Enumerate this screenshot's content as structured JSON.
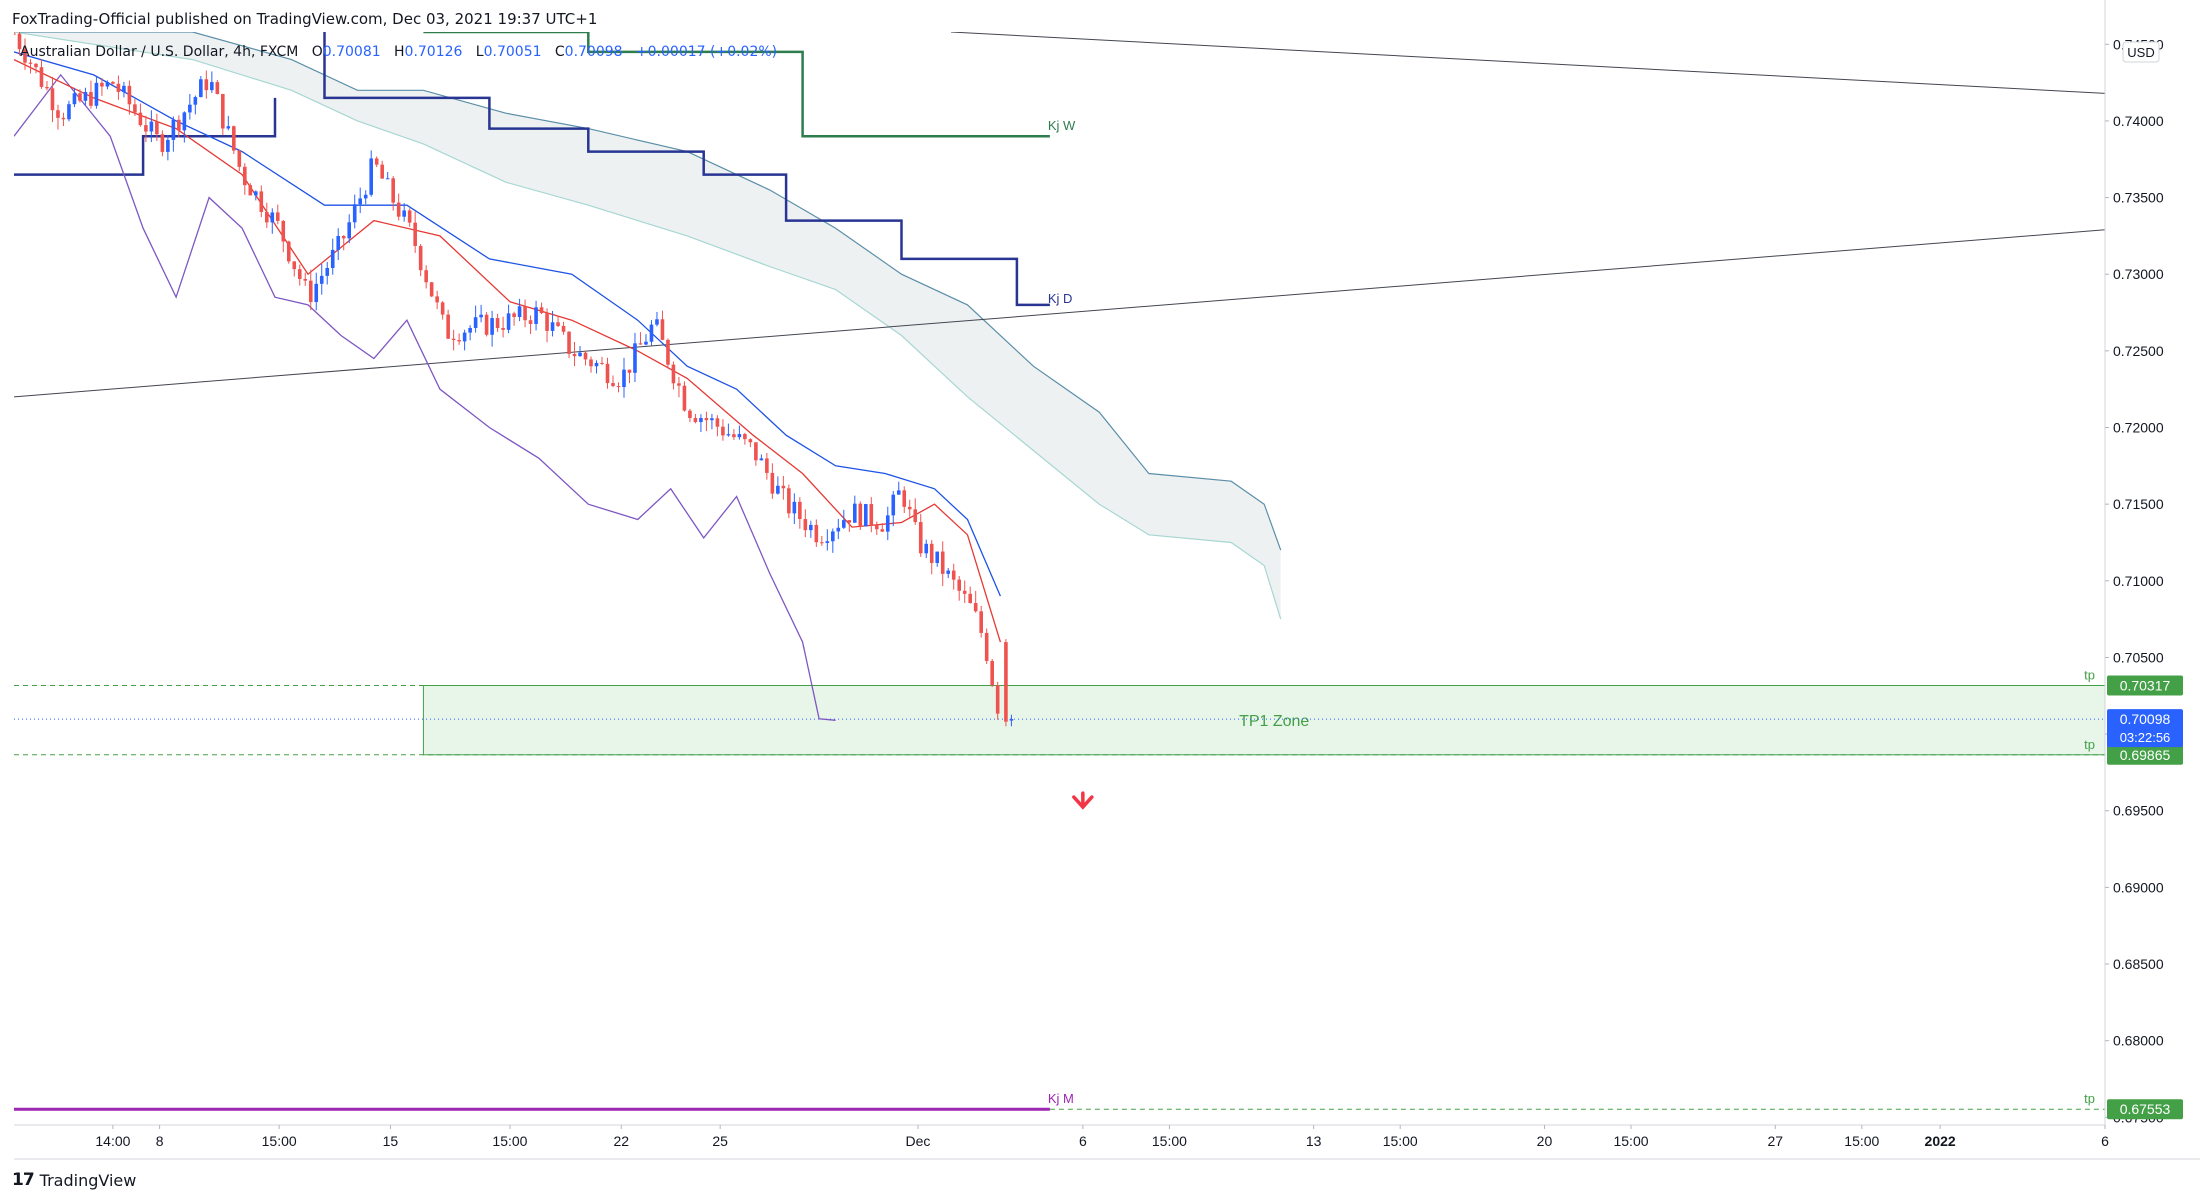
{
  "header": {
    "published": "FoxTrading-Official published on TradingView.com, Dec 03, 2021 19:37 UTC+1"
  },
  "legend": {
    "symbol": "Australian Dollar / U.S. Dollar, 4h, FXCM",
    "o_label": "O",
    "o_value": "0.70081",
    "h_label": "H",
    "h_value": "0.70126",
    "l_label": "L",
    "l_value": "0.70051",
    "c_label": "C",
    "c_value": "0.70098",
    "change": "+0.00017 (+0.02%)"
  },
  "footer": {
    "brand": "TradingView",
    "logo": "17"
  },
  "colors": {
    "up": "#2962ff",
    "down": "#ef5350",
    "tenkan": "#e53935",
    "kijun": "#1e53e5",
    "lagging": "#7e57c2",
    "kj_d": "#283593",
    "kj_w": "#2e7d4f",
    "kj_m": "#9c27b0",
    "cloud_top": "#5b8fa8",
    "cloud_bottom": "#a7d7d2",
    "cloud_fill": "#eceff1",
    "tp": "#43a047",
    "zone_fill": "#e8f5e9",
    "price_tag": "#2962ff",
    "arrow": "#f23645"
  },
  "chart_data": {
    "type": "candlestick",
    "symbol": "AUDUSD",
    "interval": "4h",
    "currency": "USD",
    "y_axis": {
      "ylim": [
        0.6745,
        0.7458
      ],
      "ticks": [
        "0.74500",
        "0.74000",
        "0.73500",
        "0.73000",
        "0.72500",
        "0.72000",
        "0.71500",
        "0.71000",
        "0.70500",
        "0.70000",
        "0.69500",
        "0.69000",
        "0.68500",
        "0.68000",
        "0.67500"
      ]
    },
    "x_axis": {
      "range": [
        "2021-11-03T14:00",
        "2022-01-06T00:00"
      ],
      "ticks": [
        {
          "t": "2021-11-06T14:00",
          "label": "14:00"
        },
        {
          "t": "2021-11-08T00:00",
          "label": "8"
        },
        {
          "t": "2021-11-11T15:00",
          "label": "15:00"
        },
        {
          "t": "2021-11-15T00:00",
          "label": "15"
        },
        {
          "t": "2021-11-18T15:00",
          "label": "15:00"
        },
        {
          "t": "2021-11-22T00:00",
          "label": "22"
        },
        {
          "t": "2021-11-25T00:00",
          "label": "25"
        },
        {
          "t": "2021-12-01T00:00",
          "label": "Dec"
        },
        {
          "t": "2021-12-06T00:00",
          "label": "6"
        },
        {
          "t": "2021-12-08T15:00",
          "label": "15:00"
        },
        {
          "t": "2021-12-13T00:00",
          "label": "13"
        },
        {
          "t": "2021-12-15T15:00",
          "label": "15:00"
        },
        {
          "t": "2021-12-20T00:00",
          "label": "20"
        },
        {
          "t": "2021-12-22T15:00",
          "label": "15:00"
        },
        {
          "t": "2021-12-27T00:00",
          "label": "27"
        },
        {
          "t": "2021-12-29T15:00",
          "label": "15:00"
        },
        {
          "t": "2022-01-01T00:00",
          "label": "2022",
          "bold": true
        },
        {
          "t": "2022-01-06T00:00",
          "label": "6"
        }
      ]
    },
    "close_path": [
      [
        "2021-11-03T14:00",
        0.7457
      ],
      [
        "2021-11-05T00:00",
        0.7405
      ],
      [
        "2021-11-06T14:00",
        0.7425
      ],
      [
        "2021-11-08T00:00",
        0.7385
      ],
      [
        "2021-11-09T12:00",
        0.7428
      ],
      [
        "2021-11-10T12:00",
        0.7365
      ],
      [
        "2021-11-11T15:00",
        0.733
      ],
      [
        "2021-11-12T12:00",
        0.7285
      ],
      [
        "2021-11-13T12:00",
        0.732
      ],
      [
        "2021-11-14T12:00",
        0.7372
      ],
      [
        "2021-11-15T16:00",
        0.7325
      ],
      [
        "2021-11-16T16:00",
        0.7262
      ],
      [
        "2021-11-18T15:00",
        0.727
      ],
      [
        "2021-11-19T12:00",
        0.7275
      ],
      [
        "2021-11-20T12:00",
        0.725
      ],
      [
        "2021-11-22T00:00",
        0.7232
      ],
      [
        "2021-11-23T00:00",
        0.7268
      ],
      [
        "2021-11-24T00:00",
        0.7213
      ],
      [
        "2021-11-25T00:00",
        0.72
      ],
      [
        "2021-11-26T00:00",
        0.7185
      ],
      [
        "2021-11-27T00:00",
        0.715
      ],
      [
        "2021-11-28T00:00",
        0.713
      ],
      [
        "2021-11-29T00:00",
        0.7145
      ],
      [
        "2021-11-30T00:00",
        0.7138
      ],
      [
        "2021-11-30T12:00",
        0.716
      ],
      [
        "2021-12-01T00:00",
        0.7125
      ],
      [
        "2021-12-01T16:00",
        0.711
      ],
      [
        "2021-12-02T16:00",
        0.708
      ],
      [
        "2021-12-03T00:00",
        0.7062
      ],
      [
        "2021-12-03T12:00",
        0.701
      ]
    ],
    "tenkan": [
      [
        "2021-11-03T14:00",
        0.744
      ],
      [
        "2021-11-06T00:00",
        0.7415
      ],
      [
        "2021-11-08T12:00",
        0.7395
      ],
      [
        "2021-11-10T12:00",
        0.7365
      ],
      [
        "2021-11-12T12:00",
        0.73
      ],
      [
        "2021-11-14T12:00",
        0.7335
      ],
      [
        "2021-11-16T12:00",
        0.7325
      ],
      [
        "2021-11-18T15:00",
        0.7282
      ],
      [
        "2021-11-20T12:00",
        0.727
      ],
      [
        "2021-11-22T12:00",
        0.725
      ],
      [
        "2021-11-24T00:00",
        0.7232
      ],
      [
        "2021-11-26T00:00",
        0.7195
      ],
      [
        "2021-11-27T12:00",
        0.717
      ],
      [
        "2021-11-29T00:00",
        0.7135
      ],
      [
        "2021-11-30T12:00",
        0.7138
      ],
      [
        "2021-12-01T12:00",
        0.715
      ],
      [
        "2021-12-02T12:00",
        0.713
      ],
      [
        "2021-12-03T12:00",
        0.706
      ]
    ],
    "kijun": [
      [
        "2021-11-03T14:00",
        0.7445
      ],
      [
        "2021-11-06T00:00",
        0.743
      ],
      [
        "2021-11-08T12:00",
        0.74
      ],
      [
        "2021-11-10T12:00",
        0.738
      ],
      [
        "2021-11-13T00:00",
        0.7345
      ],
      [
        "2021-11-15T12:00",
        0.7345
      ],
      [
        "2021-11-18T00:00",
        0.731
      ],
      [
        "2021-11-20T12:00",
        0.73
      ],
      [
        "2021-11-22T12:00",
        0.727
      ],
      [
        "2021-11-24T00:00",
        0.724
      ],
      [
        "2021-11-25T12:00",
        0.7225
      ],
      [
        "2021-11-27T00:00",
        0.7195
      ],
      [
        "2021-11-28T12:00",
        0.7175
      ],
      [
        "2021-11-30T00:00",
        0.717
      ],
      [
        "2021-12-01T12:00",
        0.716
      ],
      [
        "2021-12-02T12:00",
        0.714
      ],
      [
        "2021-12-03T12:00",
        0.709
      ]
    ],
    "lagging": [
      [
        "2021-11-03T14:00",
        0.739
      ],
      [
        "2021-11-05T00:00",
        0.743
      ],
      [
        "2021-11-06T12:00",
        0.739
      ],
      [
        "2021-11-07T12:00",
        0.733
      ],
      [
        "2021-11-08T12:00",
        0.7285
      ],
      [
        "2021-11-09T12:00",
        0.735
      ],
      [
        "2021-11-10T12:00",
        0.733
      ],
      [
        "2021-11-11T12:00",
        0.7285
      ],
      [
        "2021-11-12T12:00",
        0.728
      ],
      [
        "2021-11-13T12:00",
        0.726
      ],
      [
        "2021-11-14T12:00",
        0.7245
      ],
      [
        "2021-11-15T12:00",
        0.727
      ],
      [
        "2021-11-16T12:00",
        0.7225
      ],
      [
        "2021-11-18T00:00",
        0.72
      ],
      [
        "2021-11-19T12:00",
        0.718
      ],
      [
        "2021-11-21T00:00",
        0.715
      ],
      [
        "2021-11-22T12:00",
        0.714
      ],
      [
        "2021-11-23T12:00",
        0.716
      ],
      [
        "2021-11-24T12:00",
        0.7128
      ],
      [
        "2021-11-25T12:00",
        0.7155
      ],
      [
        "2021-11-26T12:00",
        0.7105
      ],
      [
        "2021-11-27T12:00",
        0.706
      ],
      [
        "2021-11-28T00:00",
        0.701
      ],
      [
        "2021-11-28T12:00",
        0.7009
      ]
    ],
    "cloud_span_a": [
      [
        "2021-11-03T14:00",
        0.7458
      ],
      [
        "2021-11-09T00:00",
        0.7458
      ],
      [
        "2021-11-12T00:00",
        0.744
      ],
      [
        "2021-11-14T00:00",
        0.742
      ],
      [
        "2021-11-16T00:00",
        0.742
      ],
      [
        "2021-11-18T12:00",
        0.7405
      ],
      [
        "2021-11-21T00:00",
        0.7395
      ],
      [
        "2021-11-24T00:00",
        0.738
      ],
      [
        "2021-11-26T12:00",
        0.7355
      ],
      [
        "2021-11-28T12:00",
        0.733
      ],
      [
        "2021-11-30T12:00",
        0.73
      ],
      [
        "2021-12-02T12:00",
        0.728
      ],
      [
        "2021-12-04T12:00",
        0.724
      ],
      [
        "2021-12-06T12:00",
        0.721
      ],
      [
        "2021-12-08T00:00",
        0.717
      ],
      [
        "2021-12-10T12:00",
        0.7165
      ],
      [
        "2021-12-11T12:00",
        0.715
      ],
      [
        "2021-12-12T00:00",
        0.712
      ]
    ],
    "cloud_span_b": [
      [
        "2021-11-03T14:00",
        0.7458
      ],
      [
        "2021-11-09T00:00",
        0.744
      ],
      [
        "2021-11-12T00:00",
        0.742
      ],
      [
        "2021-11-14T00:00",
        0.74
      ],
      [
        "2021-11-16T00:00",
        0.7385
      ],
      [
        "2021-11-18T12:00",
        0.736
      ],
      [
        "2021-11-21T00:00",
        0.7345
      ],
      [
        "2021-11-24T00:00",
        0.7325
      ],
      [
        "2021-11-26T12:00",
        0.7305
      ],
      [
        "2021-11-28T12:00",
        0.729
      ],
      [
        "2021-11-30T12:00",
        0.726
      ],
      [
        "2021-12-02T12:00",
        0.722
      ],
      [
        "2021-12-04T12:00",
        0.7185
      ],
      [
        "2021-12-06T12:00",
        0.715
      ],
      [
        "2021-12-08T00:00",
        0.713
      ],
      [
        "2021-12-10T12:00",
        0.7125
      ],
      [
        "2021-12-11T12:00",
        0.711
      ],
      [
        "2021-12-12T00:00",
        0.7075
      ]
    ],
    "kj_d": {
      "label": "Kj D",
      "steps": [
        [
          "2021-11-03T14:00",
          0.746
        ],
        [
          "2021-11-13T00:00",
          0.746
        ],
        [
          "2021-11-13T00:00",
          0.7415
        ],
        [
          "2021-11-18T00:00",
          0.7415
        ],
        [
          "2021-11-18T00:00",
          0.7395
        ],
        [
          "2021-11-21T00:00",
          0.7395
        ],
        [
          "2021-11-21T00:00",
          0.738
        ],
        [
          "2021-11-24T12:00",
          0.738
        ],
        [
          "2021-11-24T12:00",
          0.7365
        ],
        [
          "2021-11-27T00:00",
          0.7365
        ],
        [
          "2021-11-27T00:00",
          0.7335
        ],
        [
          "2021-11-30T12:00",
          0.7335
        ],
        [
          "2021-11-30T12:00",
          0.731
        ],
        [
          "2021-12-04T00:00",
          0.731
        ],
        [
          "2021-12-04T00:00",
          0.728
        ],
        [
          "2021-12-05T00:00",
          0.728
        ]
      ]
    },
    "kj_d_left": [
      [
        "2021-11-03T14:00",
        0.7365
      ],
      [
        "2021-11-07T12:00",
        0.7365
      ],
      [
        "2021-11-07T12:00",
        0.739
      ],
      [
        "2021-11-11T12:00",
        0.739
      ],
      [
        "2021-11-11T12:00",
        0.7415
      ]
    ],
    "kj_w": {
      "label": "Kj W",
      "steps": [
        [
          "2021-11-16T00:00",
          0.7458
        ],
        [
          "2021-11-21T00:00",
          0.7458
        ],
        [
          "2021-11-21T00:00",
          0.7445
        ],
        [
          "2021-11-27T12:00",
          0.7445
        ],
        [
          "2021-11-27T12:00",
          0.739
        ],
        [
          "2021-12-05T00:00",
          0.739
        ]
      ]
    },
    "kj_m": {
      "label": "Kj M",
      "value": 0.67553,
      "x_end": "2021-12-05T00:00"
    },
    "trendlines": [
      {
        "from": [
          "2021-11-03T14:00",
          0.722
        ],
        "to": [
          "2022-01-06T00:00",
          0.7329
        ]
      },
      {
        "from": [
          "2021-12-02T00:00",
          0.7458
        ],
        "to": [
          "2022-01-06T00:00",
          0.7418
        ]
      }
    ],
    "tp_zone": {
      "label": "TP1 Zone",
      "top": 0.70317,
      "bottom": 0.69865,
      "x_start": "2021-11-16T00:00"
    },
    "tp_lines": [
      {
        "label": "tp",
        "value": 0.70317,
        "tag": "0.70317"
      },
      {
        "label": "tp",
        "value": 0.69865,
        "tag": "0.69865"
      },
      {
        "label": "tp",
        "value": 0.67553,
        "tag": "0.67553"
      }
    ],
    "last_price": {
      "value": 0.70098,
      "tag": "0.70098",
      "countdown": "03:22:56"
    },
    "signal_arrow": {
      "direction": "down",
      "t": "2021-12-06T00:00",
      "value": 0.6955
    }
  }
}
